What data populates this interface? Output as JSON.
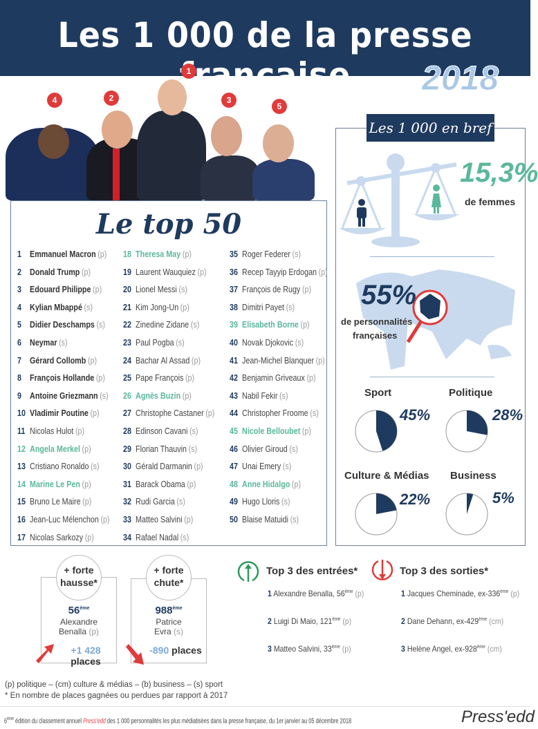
{
  "header": {
    "title": "Les 1 000 de la presse française",
    "year": "2018"
  },
  "photos": {
    "badges": [
      "4",
      "2",
      "1",
      "3",
      "5"
    ]
  },
  "top50": {
    "title": "Le top 50",
    "items": [
      {
        "rank": "1",
        "name": "Emmanuel Macron",
        "cat": "(p)",
        "bold": true
      },
      {
        "rank": "2",
        "name": "Donald Trump",
        "cat": "(p)",
        "bold": true
      },
      {
        "rank": "3",
        "name": "Edouard Philippe",
        "cat": "(p)",
        "bold": true
      },
      {
        "rank": "4",
        "name": "Kylian Mbappé",
        "cat": "(s)",
        "bold": true
      },
      {
        "rank": "5",
        "name": "Didier Deschamps",
        "cat": "(s)",
        "bold": true
      },
      {
        "rank": "6",
        "name": "Neymar",
        "cat": "(s)",
        "bold": true
      },
      {
        "rank": "7",
        "name": "Gérard Collomb",
        "cat": "(p)",
        "bold": true
      },
      {
        "rank": "8",
        "name": "François Hollande",
        "cat": "(p)",
        "bold": true
      },
      {
        "rank": "9",
        "name": "Antoine Griezmann",
        "cat": "(s)",
        "bold": true
      },
      {
        "rank": "10",
        "name": "Vladimir Poutine",
        "cat": "(p)",
        "bold": true
      },
      {
        "rank": "11",
        "name": "Nicolas Hulot",
        "cat": "(p)"
      },
      {
        "rank": "12",
        "name": "Angela Merkel",
        "cat": "(p)",
        "woman": true
      },
      {
        "rank": "13",
        "name": "Cristiano Ronaldo",
        "cat": "(s)"
      },
      {
        "rank": "14",
        "name": "Marine Le Pen",
        "cat": "(p)",
        "woman": true
      },
      {
        "rank": "15",
        "name": "Bruno Le Maire",
        "cat": "(p)"
      },
      {
        "rank": "16",
        "name": "Jean-Luc Mélenchon",
        "cat": "(p)"
      },
      {
        "rank": "17",
        "name": "Nicolas Sarkozy",
        "cat": "(p)"
      },
      {
        "rank": "18",
        "name": "Theresa May",
        "cat": "(p)",
        "woman": true
      },
      {
        "rank": "19",
        "name": "Laurent Wauquiez",
        "cat": "(p)"
      },
      {
        "rank": "20",
        "name": "Lionel Messi",
        "cat": "(s)"
      },
      {
        "rank": "21",
        "name": "Kim Jong-Un",
        "cat": "(p)"
      },
      {
        "rank": "22",
        "name": "Zinedine Zidane",
        "cat": "(s)"
      },
      {
        "rank": "23",
        "name": "Paul Pogba",
        "cat": "(s)"
      },
      {
        "rank": "24",
        "name": "Bachar Al Assad",
        "cat": "(p)"
      },
      {
        "rank": "25",
        "name": "Pape François",
        "cat": "(p)"
      },
      {
        "rank": "26",
        "name": "Agnès Buzin",
        "cat": "(p)",
        "woman": true
      },
      {
        "rank": "27",
        "name": "Christophe Castaner",
        "cat": "(p)"
      },
      {
        "rank": "28",
        "name": "Edinson Cavani",
        "cat": "(s)"
      },
      {
        "rank": "29",
        "name": "Florian Thauvin",
        "cat": "(s)"
      },
      {
        "rank": "30",
        "name": "Gérald Darmanin",
        "cat": "(p)"
      },
      {
        "rank": "31",
        "name": "Barack Obama",
        "cat": "(p)"
      },
      {
        "rank": "32",
        "name": "Rudi Garcia",
        "cat": "(s)"
      },
      {
        "rank": "33",
        "name": "Matteo Salvini",
        "cat": "(p)"
      },
      {
        "rank": "34",
        "name": "Rafael Nadal",
        "cat": "(s)"
      },
      {
        "rank": "35",
        "name": "Roger Federer",
        "cat": "(s)"
      },
      {
        "rank": "36",
        "name": "Recep Tayyip Erdogan",
        "cat": "(p)"
      },
      {
        "rank": "37",
        "name": "François de Rugy",
        "cat": "(p)"
      },
      {
        "rank": "38",
        "name": "Dimitri Payet",
        "cat": "(s)"
      },
      {
        "rank": "39",
        "name": "Elisabeth Borne",
        "cat": "(p)",
        "woman": true
      },
      {
        "rank": "40",
        "name": "Novak Djokovic",
        "cat": "(s)"
      },
      {
        "rank": "41",
        "name": "Jean-Michel Blanquer",
        "cat": "(p)"
      },
      {
        "rank": "42",
        "name": "Benjamin Griveaux",
        "cat": "(p)"
      },
      {
        "rank": "43",
        "name": "Nabil Fekir",
        "cat": "(s)"
      },
      {
        "rank": "44",
        "name": "Christopher Froome",
        "cat": "(s)"
      },
      {
        "rank": "45",
        "name": "Nicole Belloubet",
        "cat": "(p)",
        "woman": true
      },
      {
        "rank": "46",
        "name": "Olivier Giroud",
        "cat": "(s)"
      },
      {
        "rank": "47",
        "name": "Unai Emery",
        "cat": "(s)"
      },
      {
        "rank": "48",
        "name": "Anne Hidalgo",
        "cat": "(p)",
        "woman": true
      },
      {
        "rank": "49",
        "name": "Hugo Lloris",
        "cat": "(s)"
      },
      {
        "rank": "50",
        "name": "Blaise Matuidi",
        "cat": "(s)"
      }
    ]
  },
  "brief": {
    "title": "Les 1 000 en bref",
    "women_pct": "15,3%",
    "women_label": "de femmes",
    "french_pct": "55%",
    "french_label1": "de personnalités",
    "french_label2": "françaises",
    "categories": [
      {
        "label": "Sport",
        "percent": 45,
        "text": "45%"
      },
      {
        "label": "Politique",
        "percent": 28,
        "text": "28%"
      },
      {
        "label": "Culture & Médias",
        "percent": 22,
        "text": "22%"
      },
      {
        "label": "Business",
        "percent": 5,
        "text": "5%"
      }
    ],
    "colors": {
      "navy": "#1f3a5f",
      "green": "#5bb89a",
      "light": "#c9daee",
      "red": "#e03a3a"
    }
  },
  "movers": {
    "rise": {
      "title1": "+ forte",
      "title2": "hausse*",
      "rank": "56",
      "sup": "ème",
      "name1": "Alexandre",
      "name2": "Benalla",
      "cat": "(p)",
      "delta": "+1 428",
      "unit": "places"
    },
    "fall": {
      "title1": "+ forte",
      "title2": "chute*",
      "rank": "988",
      "sup": "ème",
      "name1": "Patrice",
      "name2": "Evra",
      "cat": "(s)",
      "delta": "-890",
      "unit": "places"
    }
  },
  "entries": {
    "title": "Top 3 des entrées*",
    "items": [
      {
        "n": "1",
        "text": "Alexandre Benalla, 56",
        "sup": "ème",
        "cat": "(p)"
      },
      {
        "n": "2",
        "text": "Luigi Di Maio, 121",
        "sup": "ème",
        "cat": "(p)"
      },
      {
        "n": "3",
        "text": "Matteo Salvini, 33",
        "sup": "ème",
        "cat": "(p)"
      }
    ]
  },
  "exits": {
    "title": "Top 3 des sorties*",
    "items": [
      {
        "n": "1",
        "text": "Jacques Cheminade, ex-336",
        "sup": "ème",
        "cat": "(p)"
      },
      {
        "n": "2",
        "text": "Dane Dehann, ex-429",
        "sup": "ème",
        "cat": "(cm)"
      },
      {
        "n": "3",
        "text": "Helène Angel, ex-928",
        "sup": "ème",
        "cat": "(cm)"
      }
    ]
  },
  "legend": {
    "line1": "(p) politique – (cm) culture & médias – (b) business – (s) sport",
    "line2": "* En nombre de places gagnées ou perdues par rapport à 2017"
  },
  "footer": {
    "pre_sup": "6",
    "sup": "ème",
    "text1": " édition du classement annuel ",
    "brand_inline": "Press'edd",
    "text2": " des 1 000 personnalités les plus médiatisées dans la presse française, du 1er janvier au 05 décembre 2018",
    "logo": "Press'edd"
  }
}
